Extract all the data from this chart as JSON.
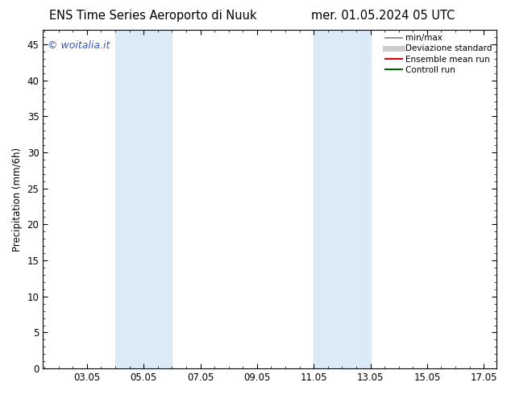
{
  "title_left": "ENS Time Series Aeroporto di Nuuk",
  "title_right": "mer. 01.05.2024 05 UTC",
  "ylabel": "Precipitation (mm/6h)",
  "xlim": [
    1.5,
    17.5
  ],
  "ylim": [
    0,
    47
  ],
  "yticks": [
    0,
    5,
    10,
    15,
    20,
    25,
    30,
    35,
    40,
    45
  ],
  "xticks": [
    3.05,
    5.05,
    7.05,
    9.05,
    11.05,
    13.05,
    15.05,
    17.05
  ],
  "xticklabels": [
    "03.05",
    "05.05",
    "07.05",
    "09.05",
    "11.05",
    "13.05",
    "15.05",
    "17.05"
  ],
  "shade_bands": [
    {
      "xmin": 4.05,
      "xmax": 6.05,
      "color": "#daeaf7"
    },
    {
      "xmin": 11.05,
      "xmax": 13.05,
      "color": "#daeaf7"
    }
  ],
  "watermark": "© woitalia.it",
  "watermark_color": "#3355cc",
  "legend_items": [
    {
      "label": "min/max",
      "color": "#999999",
      "lw": 1.5
    },
    {
      "label": "Deviazione standard",
      "color": "#cccccc",
      "lw": 5
    },
    {
      "label": "Ensemble mean run",
      "color": "#dd0000",
      "lw": 1.5
    },
    {
      "label": "Controll run",
      "color": "#006600",
      "lw": 1.5
    }
  ],
  "bg_color": "#ffffff",
  "title_fontsize": 10.5,
  "tick_fontsize": 8.5,
  "ylabel_fontsize": 8.5,
  "legend_fontsize": 7.5,
  "watermark_fontsize": 9
}
